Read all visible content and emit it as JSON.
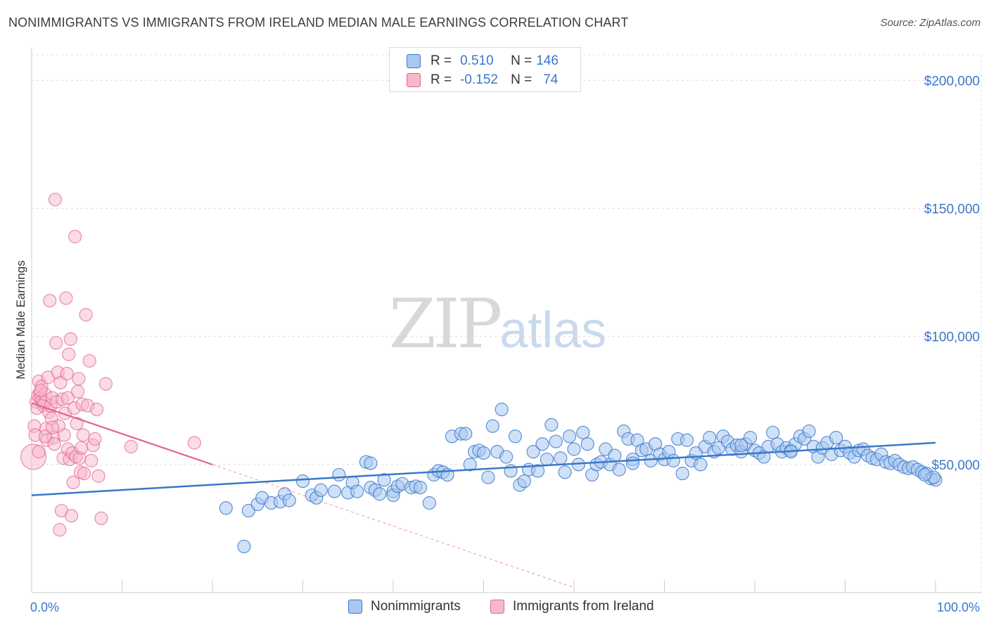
{
  "title": "NONIMMIGRANTS VS IMMIGRANTS FROM IRELAND MEDIAN MALE EARNINGS CORRELATION CHART",
  "source": "Source: ZipAtlas.com",
  "watermark": {
    "zip": "ZIP",
    "atlas": "atlas"
  },
  "legend": {
    "r_label": "R =",
    "n_label": "N =",
    "series": [
      {
        "r": "0.510",
        "n": "146"
      },
      {
        "r": "-0.152",
        "n": "74"
      }
    ]
  },
  "colors": {
    "blue": "#3a78c9",
    "blue_fill": "#a9c8f0",
    "pink": "#e0658f",
    "pink_fill": "#f7b8cb"
  },
  "chart_data": {
    "type": "scatter",
    "title": "NONIMMIGRANTS VS IMMIGRANTS FROM IRELAND MEDIAN MALE EARNINGS CORRELATION CHART",
    "xlabel": "",
    "ylabel": "Median Male Earnings",
    "xlim": [
      0,
      100
    ],
    "ylim": [
      0,
      210000
    ],
    "x_tick_labels": [
      "0.0%",
      "100.0%"
    ],
    "y_ticks": [
      {
        "value": 50000,
        "label": "$50,000"
      },
      {
        "value": 100000,
        "label": "$100,000"
      },
      {
        "value": 150000,
        "label": "$150,000"
      },
      {
        "value": 200000,
        "label": "$200,000"
      }
    ],
    "series": [
      {
        "name": "Nonimmigrants",
        "r": 0.51,
        "n": 146,
        "trend": [
          [
            0,
            38000
          ],
          [
            100,
            58500
          ]
        ],
        "points": [
          [
            21.5,
            33000
          ],
          [
            23.5,
            18000
          ],
          [
            24,
            32000
          ],
          [
            25,
            34500
          ],
          [
            25.5,
            37000
          ],
          [
            26.5,
            35000
          ],
          [
            27.5,
            35500
          ],
          [
            28,
            38500
          ],
          [
            28.5,
            36000
          ],
          [
            30,
            43500
          ],
          [
            31,
            38000
          ],
          [
            31.5,
            37000
          ],
          [
            32,
            40000
          ],
          [
            33.5,
            39500
          ],
          [
            34,
            46000
          ],
          [
            35,
            39000
          ],
          [
            35.5,
            43000
          ],
          [
            36,
            39500
          ],
          [
            37,
            51000
          ],
          [
            37.5,
            50500
          ],
          [
            37.5,
            41000
          ],
          [
            38,
            40000
          ],
          [
            38.5,
            38500
          ],
          [
            39,
            44000
          ],
          [
            40,
            39500
          ],
          [
            40,
            38000
          ],
          [
            40.5,
            41500
          ],
          [
            41,
            42500
          ],
          [
            42,
            41000
          ],
          [
            42.5,
            41500
          ],
          [
            43,
            41000
          ],
          [
            44,
            35000
          ],
          [
            44.5,
            46000
          ],
          [
            45,
            47500
          ],
          [
            45.5,
            47000
          ],
          [
            46,
            46000
          ],
          [
            46.5,
            61000
          ],
          [
            47.5,
            62000
          ],
          [
            48,
            62000
          ],
          [
            48.5,
            50000
          ],
          [
            49,
            55000
          ],
          [
            49.5,
            55500
          ],
          [
            50,
            54500
          ],
          [
            50.5,
            45000
          ],
          [
            51,
            65000
          ],
          [
            51.5,
            55000
          ],
          [
            52,
            71500
          ],
          [
            52.5,
            53000
          ],
          [
            53,
            47500
          ],
          [
            53.5,
            61000
          ],
          [
            54,
            42000
          ],
          [
            54.5,
            43500
          ],
          [
            55,
            48000
          ],
          [
            55.5,
            55000
          ],
          [
            56,
            47500
          ],
          [
            56.5,
            58000
          ],
          [
            57,
            52000
          ],
          [
            57.5,
            65500
          ],
          [
            58,
            59000
          ],
          [
            58.5,
            52500
          ],
          [
            59,
            47000
          ],
          [
            59.5,
            61000
          ],
          [
            60,
            56000
          ],
          [
            60.5,
            50000
          ],
          [
            61,
            62500
          ],
          [
            61.5,
            58000
          ],
          [
            62,
            46000
          ],
          [
            62.5,
            50000
          ],
          [
            63,
            51000
          ],
          [
            63.5,
            56000
          ],
          [
            64,
            50000
          ],
          [
            64.5,
            53500
          ],
          [
            65,
            48000
          ],
          [
            65.5,
            63000
          ],
          [
            66,
            60000
          ],
          [
            66.5,
            52000
          ],
          [
            67,
            59500
          ],
          [
            67.5,
            55500
          ],
          [
            68,
            56000
          ],
          [
            68.5,
            51500
          ],
          [
            69,
            58000
          ],
          [
            69.5,
            54000
          ],
          [
            70,
            52000
          ],
          [
            70.5,
            55000
          ],
          [
            71,
            51500
          ],
          [
            71.5,
            60000
          ],
          [
            72,
            46500
          ],
          [
            72.5,
            59500
          ],
          [
            73,
            51500
          ],
          [
            73.5,
            54500
          ],
          [
            74,
            50000
          ],
          [
            74.5,
            57000
          ],
          [
            75,
            60500
          ],
          [
            75.5,
            55000
          ],
          [
            76,
            56500
          ],
          [
            76.5,
            61000
          ],
          [
            77,
            59000
          ],
          [
            77.5,
            56000
          ],
          [
            78,
            57500
          ],
          [
            78.5,
            55000
          ],
          [
            79,
            58000
          ],
          [
            79.5,
            60500
          ],
          [
            80,
            55500
          ],
          [
            80.5,
            54500
          ],
          [
            81,
            53000
          ],
          [
            81.5,
            57000
          ],
          [
            82,
            62500
          ],
          [
            82.5,
            58000
          ],
          [
            83,
            55000
          ],
          [
            83.5,
            56500
          ],
          [
            84,
            55500
          ],
          [
            84.5,
            58000
          ],
          [
            85,
            61000
          ],
          [
            85.5,
            60000
          ],
          [
            86,
            63000
          ],
          [
            86.5,
            57000
          ],
          [
            87,
            53000
          ],
          [
            87.5,
            56500
          ],
          [
            88,
            58500
          ],
          [
            88.5,
            54000
          ],
          [
            89,
            60500
          ],
          [
            89.5,
            55500
          ],
          [
            90,
            57000
          ],
          [
            90.5,
            54500
          ],
          [
            91,
            53000
          ],
          [
            91.5,
            55500
          ],
          [
            92,
            56000
          ],
          [
            92.5,
            53500
          ],
          [
            93,
            52500
          ],
          [
            93.5,
            52000
          ],
          [
            94,
            54000
          ],
          [
            94.5,
            51000
          ],
          [
            95,
            50500
          ],
          [
            95.5,
            51500
          ],
          [
            96,
            50000
          ],
          [
            96.5,
            49000
          ],
          [
            97,
            48500
          ],
          [
            97.5,
            49000
          ],
          [
            98,
            48000
          ],
          [
            98.5,
            47000
          ],
          [
            99,
            46500
          ],
          [
            99.5,
            44500
          ],
          [
            100,
            44000
          ],
          [
            99.8,
            45000
          ],
          [
            98.8,
            46000
          ],
          [
            66.5,
            50500
          ],
          [
            78.5,
            57500
          ],
          [
            84,
            55000
          ]
        ]
      },
      {
        "name": "Immigrants from Ireland",
        "r": -0.152,
        "n": 74,
        "trend": [
          [
            0,
            74000
          ],
          [
            20,
            50000
          ]
        ],
        "trend_dashed": [
          [
            20,
            50000
          ],
          [
            60,
            2000
          ]
        ],
        "points": [
          [
            0.2,
            53000
          ],
          [
            0.3,
            65000
          ],
          [
            0.4,
            61500
          ],
          [
            0.5,
            74500
          ],
          [
            0.6,
            72000
          ],
          [
            0.7,
            77000
          ],
          [
            0.8,
            82500
          ],
          [
            0.9,
            78000
          ],
          [
            1,
            76000
          ],
          [
            1.1,
            80500
          ],
          [
            1.2,
            75000
          ],
          [
            1.3,
            73000
          ],
          [
            1.4,
            74000
          ],
          [
            1.5,
            77500
          ],
          [
            1.6,
            64000
          ],
          [
            1.7,
            59500
          ],
          [
            1.8,
            84000
          ],
          [
            1.9,
            70500
          ],
          [
            2,
            114000
          ],
          [
            2.1,
            73000
          ],
          [
            2.2,
            68000
          ],
          [
            2.3,
            76000
          ],
          [
            2.4,
            60500
          ],
          [
            2.5,
            58000
          ],
          [
            2.6,
            153500
          ],
          [
            2.7,
            97500
          ],
          [
            2.8,
            74500
          ],
          [
            2.9,
            86000
          ],
          [
            3,
            65000
          ],
          [
            3.1,
            24500
          ],
          [
            3.2,
            82000
          ],
          [
            3.3,
            32000
          ],
          [
            3.4,
            75500
          ],
          [
            3.5,
            52500
          ],
          [
            3.6,
            61500
          ],
          [
            3.7,
            70000
          ],
          [
            3.8,
            115000
          ],
          [
            3.9,
            85500
          ],
          [
            4,
            56000
          ],
          [
            4.1,
            93000
          ],
          [
            4.2,
            52000
          ],
          [
            4.3,
            99000
          ],
          [
            4.4,
            30000
          ],
          [
            4.5,
            54500
          ],
          [
            4.6,
            43000
          ],
          [
            4.7,
            72000
          ],
          [
            4.8,
            139000
          ],
          [
            4.9,
            53000
          ],
          [
            5,
            66000
          ],
          [
            5.1,
            78500
          ],
          [
            5.2,
            83500
          ],
          [
            5.3,
            52500
          ],
          [
            5.4,
            47000
          ],
          [
            5.5,
            56500
          ],
          [
            5.6,
            73500
          ],
          [
            5.7,
            61500
          ],
          [
            5.8,
            46500
          ],
          [
            6,
            108500
          ],
          [
            6.2,
            73000
          ],
          [
            6.4,
            90500
          ],
          [
            6.6,
            51500
          ],
          [
            6.8,
            57500
          ],
          [
            7,
            60000
          ],
          [
            7.2,
            71500
          ],
          [
            7.4,
            45500
          ],
          [
            7.7,
            29000
          ],
          [
            8.2,
            81500
          ],
          [
            11,
            57000
          ],
          [
            18,
            58500
          ],
          [
            1,
            79000
          ],
          [
            1.5,
            61000
          ],
          [
            2.3,
            64500
          ],
          [
            0.8,
            55000
          ],
          [
            4,
            76000
          ]
        ]
      }
    ]
  },
  "bottom_legend": [
    "Nonimmigrants",
    "Immigrants from Ireland"
  ]
}
